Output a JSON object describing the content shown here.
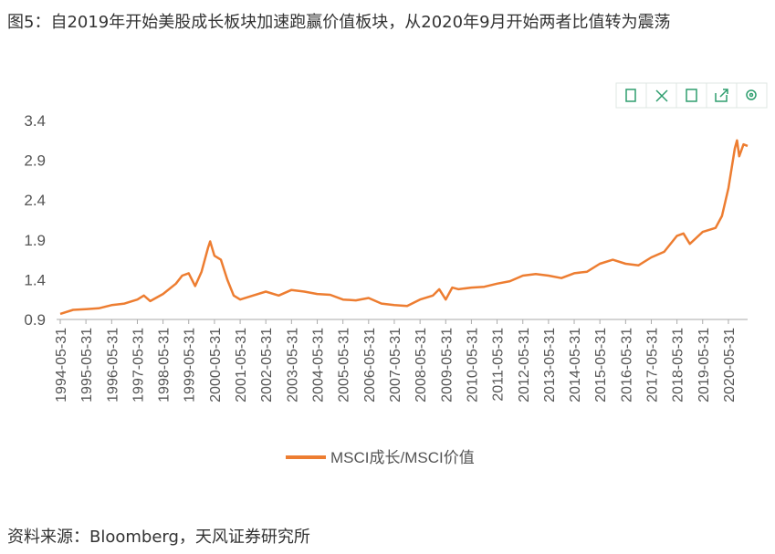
{
  "chart_data": {
    "type": "line",
    "title": "图5：自2019年开始美股成长板块加速跑赢价值板块，从2020年9月开始两者比值转为震荡",
    "x": [
      "1994-05-31",
      "1994-11-30",
      "1995-05-31",
      "1995-11-30",
      "1996-05-31",
      "1996-11-30",
      "1997-05-31",
      "1997-08-31",
      "1997-11-30",
      "1998-05-31",
      "1998-11-30",
      "1999-02-28",
      "1999-05-31",
      "1999-08-31",
      "1999-11-30",
      "2000-02-29",
      "2000-03-31",
      "2000-05-31",
      "2000-08-31",
      "2000-11-30",
      "2001-02-28",
      "2001-05-31",
      "2001-11-30",
      "2002-05-31",
      "2002-11-30",
      "2003-05-31",
      "2003-11-30",
      "2004-05-31",
      "2004-11-30",
      "2005-05-31",
      "2005-11-30",
      "2006-05-31",
      "2006-11-30",
      "2007-05-31",
      "2007-11-30",
      "2008-05-31",
      "2008-11-30",
      "2009-02-28",
      "2009-05-31",
      "2009-08-31",
      "2009-11-30",
      "2010-05-31",
      "2010-11-30",
      "2011-05-31",
      "2011-11-30",
      "2012-05-31",
      "2012-11-30",
      "2013-05-31",
      "2013-11-30",
      "2014-05-31",
      "2014-11-30",
      "2015-05-31",
      "2015-11-30",
      "2016-05-31",
      "2016-11-30",
      "2017-05-31",
      "2017-11-30",
      "2018-05-31",
      "2018-08-31",
      "2018-11-30",
      "2019-05-31",
      "2019-11-30",
      "2020-02-29",
      "2020-05-31",
      "2020-08-31",
      "2020-09-30",
      "2020-10-31",
      "2020-12-31",
      "2021-02-28"
    ],
    "series": [
      {
        "name": "MSCI成长/MSCI价值",
        "color": "#ed7d31",
        "values": [
          0.97,
          1.02,
          1.03,
          1.04,
          1.08,
          1.1,
          1.15,
          1.2,
          1.13,
          1.22,
          1.35,
          1.45,
          1.48,
          1.32,
          1.5,
          1.8,
          1.88,
          1.7,
          1.65,
          1.4,
          1.2,
          1.15,
          1.2,
          1.25,
          1.2,
          1.27,
          1.25,
          1.22,
          1.21,
          1.15,
          1.14,
          1.17,
          1.1,
          1.08,
          1.07,
          1.15,
          1.2,
          1.28,
          1.15,
          1.3,
          1.28,
          1.3,
          1.31,
          1.35,
          1.38,
          1.45,
          1.47,
          1.45,
          1.42,
          1.48,
          1.5,
          1.6,
          1.65,
          1.6,
          1.58,
          1.68,
          1.75,
          1.95,
          1.98,
          1.85,
          2.0,
          2.05,
          2.2,
          2.55,
          3.05,
          3.15,
          2.95,
          3.1,
          3.08
        ]
      }
    ],
    "xlim": [
      "1994-05-31",
      "2021-02-28"
    ],
    "xticks": [
      "1994-05-31",
      "1995-05-31",
      "1996-05-31",
      "1997-05-31",
      "1998-05-31",
      "1999-05-31",
      "2000-05-31",
      "2001-05-31",
      "2002-05-31",
      "2003-05-31",
      "2004-05-31",
      "2005-05-31",
      "2006-05-31",
      "2007-05-31",
      "2008-05-31",
      "2009-05-31",
      "2010-05-31",
      "2011-05-31",
      "2012-05-31",
      "2013-05-31",
      "2014-05-31",
      "2015-05-31",
      "2016-05-31",
      "2017-05-31",
      "2018-05-31",
      "2019-05-31",
      "2020-05-31"
    ],
    "ylim": [
      0.9,
      3.4
    ],
    "yticks": [
      0.9,
      1.4,
      1.9,
      2.4,
      2.9,
      3.4
    ],
    "grid": false,
    "legend": "bottom"
  },
  "source": "资料来源：Bloomberg，天风证券研究所"
}
